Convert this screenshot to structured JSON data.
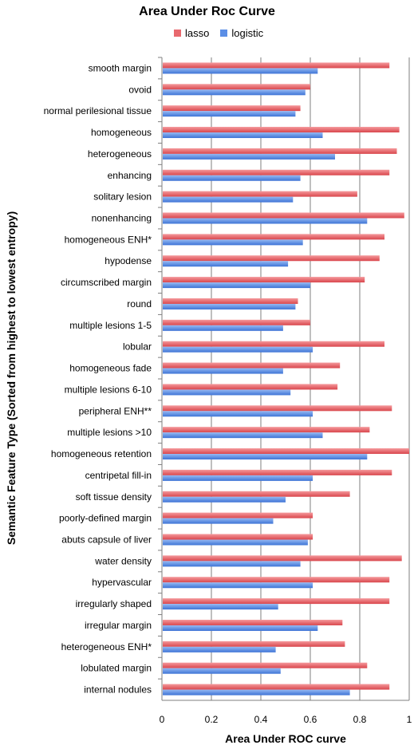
{
  "chart_data": {
    "type": "bar",
    "orientation": "horizontal",
    "title": "Area Under Roc Curve",
    "xlabel": "Area Under ROC curve",
    "ylabel": "Semantic Feature Type (Sorted from highest to lowest entropy)",
    "xlim": [
      0,
      1
    ],
    "xticks": [
      "0",
      "0.2",
      "0.4",
      "0.6",
      "0.8",
      "1"
    ],
    "grid": true,
    "legend_position": "top",
    "categories": [
      "smooth margin",
      "ovoid",
      "normal perilesional tissue",
      "homogeneous",
      "heterogeneous",
      "enhancing",
      "solitary lesion",
      "nonenhancing",
      "homogeneous ENH*",
      "hypodense",
      "circumscribed margin",
      "round",
      "multiple lesions 1-5",
      "lobular",
      "homogeneous fade",
      "multiple lesions 6-10",
      "peripheral ENH**",
      "multiple lesions >10",
      "homogeneous retention",
      "centripetal fill-in",
      "soft tissue density",
      "poorly-defined margin",
      "abuts capsule of liver",
      "water density",
      "hypervascular",
      "irregularly shaped",
      "irregular margin",
      "heterogeneous ENH*",
      "lobulated margin",
      "internal nodules"
    ],
    "series": [
      {
        "name": "lasso",
        "color": "#e8696e",
        "values": [
          0.92,
          0.6,
          0.56,
          0.96,
          0.95,
          0.92,
          0.79,
          0.98,
          0.9,
          0.88,
          0.82,
          0.55,
          0.6,
          0.9,
          0.72,
          0.71,
          0.93,
          0.84,
          1.0,
          0.93,
          0.76,
          0.61,
          0.61,
          0.97,
          0.92,
          0.92,
          0.73,
          0.74,
          0.83,
          0.92
        ]
      },
      {
        "name": "logistic",
        "color": "#5b8ee6",
        "values": [
          0.63,
          0.58,
          0.54,
          0.65,
          0.7,
          0.56,
          0.53,
          0.83,
          0.57,
          0.51,
          0.6,
          0.54,
          0.49,
          0.61,
          0.49,
          0.52,
          0.61,
          0.65,
          0.83,
          0.61,
          0.5,
          0.45,
          0.59,
          0.56,
          0.61,
          0.47,
          0.63,
          0.46,
          0.48,
          0.76
        ]
      }
    ]
  }
}
